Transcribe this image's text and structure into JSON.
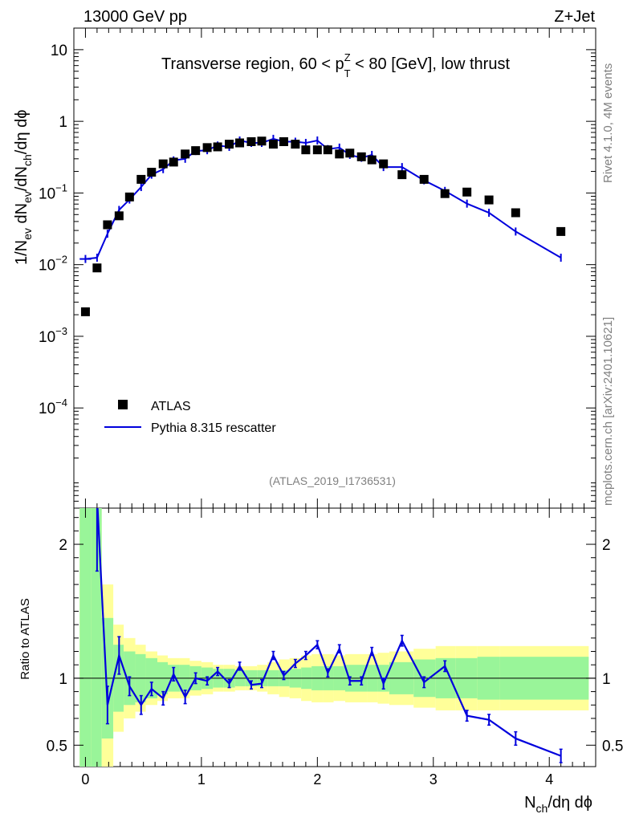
{
  "header": {
    "left": "13000 GeV pp",
    "right": "Z+Jet"
  },
  "side": {
    "top": "Rivet 4.1.0,  4M events",
    "bottom": "mcplots.cern.ch [arXiv:2401.10621]"
  },
  "chart_data": {
    "type": "line",
    "title_parts": {
      "before": "Transverse region, 60 < p",
      "sup": "Z",
      "sub": "T",
      "after": " < 80 [GeV], low thrust"
    },
    "analysis_id": "(ATLAS_2019_I1736531)",
    "xlabel": "N_ch/dη dϕ",
    "ylabel": "1/N_ev dN_ev/dN_ch/dη dϕ",
    "ratio_ylabel": "Ratio to ATLAS",
    "xlim": [
      -0.1,
      4.4
    ],
    "ylim_log": [
      4e-06,
      20
    ],
    "ratio_ylim": [
      0.34,
      2.27
    ],
    "x_ticks": [
      "0",
      "1",
      "2",
      "3",
      "4"
    ],
    "y_ticks": [
      "10",
      "1",
      "10^-1",
      "10^-2",
      "10^-3",
      "10^-4"
    ],
    "ratio_ticks": [
      "2",
      "1",
      "0.5"
    ],
    "legend": {
      "data_label": "ATLAS",
      "mc_label": "Pythia 8.315 rescatter"
    },
    "series": [
      {
        "name": "ATLAS",
        "x": [
          0.0,
          0.1,
          0.19,
          0.29,
          0.38,
          0.48,
          0.57,
          0.67,
          0.76,
          0.86,
          0.95,
          1.05,
          1.14,
          1.24,
          1.33,
          1.43,
          1.52,
          1.62,
          1.71,
          1.81,
          1.9,
          2.0,
          2.09,
          2.19,
          2.28,
          2.38,
          2.47,
          2.57,
          2.73,
          2.92,
          3.1,
          3.29,
          3.48,
          3.71,
          4.1
        ],
        "values": [
          0.0022,
          0.009,
          0.036,
          0.048,
          0.088,
          0.155,
          0.195,
          0.255,
          0.27,
          0.35,
          0.39,
          0.43,
          0.44,
          0.48,
          0.5,
          0.52,
          0.53,
          0.48,
          0.52,
          0.48,
          0.4,
          0.4,
          0.4,
          0.35,
          0.36,
          0.32,
          0.29,
          0.255,
          0.18,
          0.155,
          0.098,
          0.103,
          0.08,
          0.053,
          0.029
        ]
      },
      {
        "name": "Pythia 8.315 rescatter",
        "x": [
          0.0,
          0.1,
          0.19,
          0.29,
          0.38,
          0.48,
          0.57,
          0.67,
          0.76,
          0.86,
          0.95,
          1.05,
          1.14,
          1.24,
          1.33,
          1.43,
          1.52,
          1.62,
          1.71,
          1.81,
          1.9,
          2.0,
          2.09,
          2.19,
          2.28,
          2.38,
          2.47,
          2.57,
          2.73,
          2.92,
          3.1,
          3.29,
          3.48,
          3.71,
          4.1
        ],
        "values": [
          0.012,
          0.0125,
          0.027,
          0.058,
          0.081,
          0.121,
          0.18,
          0.215,
          0.285,
          0.3,
          0.385,
          0.395,
          0.46,
          0.44,
          0.54,
          0.5,
          0.5,
          0.57,
          0.52,
          0.52,
          0.5,
          0.54,
          0.41,
          0.43,
          0.34,
          0.31,
          0.34,
          0.23,
          0.23,
          0.15,
          0.107,
          0.071,
          0.053,
          0.029,
          0.0125
        ]
      }
    ],
    "ratio": {
      "x": [
        0.1,
        0.19,
        0.29,
        0.38,
        0.48,
        0.57,
        0.67,
        0.76,
        0.86,
        0.95,
        1.05,
        1.14,
        1.24,
        1.33,
        1.43,
        1.52,
        1.62,
        1.71,
        1.81,
        1.9,
        2.0,
        2.09,
        2.19,
        2.28,
        2.38,
        2.47,
        2.57,
        2.73,
        2.92,
        3.1,
        3.29,
        3.48,
        3.71,
        4.1
      ],
      "values": [
        2.35,
        0.8,
        1.17,
        0.94,
        0.8,
        0.92,
        0.85,
        1.03,
        0.86,
        1.0,
        0.98,
        1.05,
        0.96,
        1.09,
        0.95,
        0.96,
        1.17,
        1.02,
        1.11,
        1.17,
        1.25,
        1.04,
        1.22,
        0.98,
        0.98,
        1.2,
        0.96,
        1.28,
        0.97,
        1.09,
        0.72,
        0.69,
        0.55,
        0.42
      ],
      "errors": [
        0.55,
        0.14,
        0.14,
        0.07,
        0.07,
        0.05,
        0.05,
        0.05,
        0.05,
        0.04,
        0.03,
        0.03,
        0.03,
        0.03,
        0.03,
        0.03,
        0.03,
        0.03,
        0.03,
        0.03,
        0.03,
        0.03,
        0.03,
        0.03,
        0.03,
        0.03,
        0.04,
        0.04,
        0.04,
        0.04,
        0.04,
        0.04,
        0.05,
        0.05
      ],
      "band_edges": [
        -0.05,
        0.05,
        0.14,
        0.24,
        0.33,
        0.43,
        0.52,
        0.62,
        0.71,
        0.81,
        0.9,
        1.0,
        1.1,
        1.19,
        1.29,
        1.38,
        1.48,
        1.57,
        1.67,
        1.76,
        1.86,
        1.95,
        2.05,
        2.14,
        2.24,
        2.33,
        2.43,
        2.52,
        2.62,
        2.83,
        3.02,
        3.19,
        3.38,
        3.57,
        3.86,
        4.34
      ],
      "band_inner": [
        2.5,
        2.5,
        0.45,
        0.25,
        0.2,
        0.18,
        0.15,
        0.12,
        0.1,
        0.1,
        0.09,
        0.08,
        0.07,
        0.07,
        0.06,
        0.06,
        0.06,
        0.06,
        0.06,
        0.07,
        0.08,
        0.09,
        0.09,
        0.09,
        0.1,
        0.1,
        0.1,
        0.1,
        0.12,
        0.14,
        0.15,
        0.15,
        0.16,
        0.16,
        0.16
      ],
      "band_outer": [
        3.5,
        3.5,
        0.7,
        0.4,
        0.3,
        0.25,
        0.2,
        0.17,
        0.15,
        0.15,
        0.13,
        0.12,
        0.1,
        0.1,
        0.09,
        0.09,
        0.1,
        0.12,
        0.14,
        0.15,
        0.17,
        0.18,
        0.18,
        0.17,
        0.18,
        0.18,
        0.18,
        0.19,
        0.2,
        0.22,
        0.24,
        0.24,
        0.24,
        0.24,
        0.24
      ]
    }
  },
  "colors": {
    "mc": "#0000dd",
    "data": "#000000",
    "band_inner": "#99f599",
    "band_outer": "#ffff99",
    "side_text": "#808080"
  }
}
